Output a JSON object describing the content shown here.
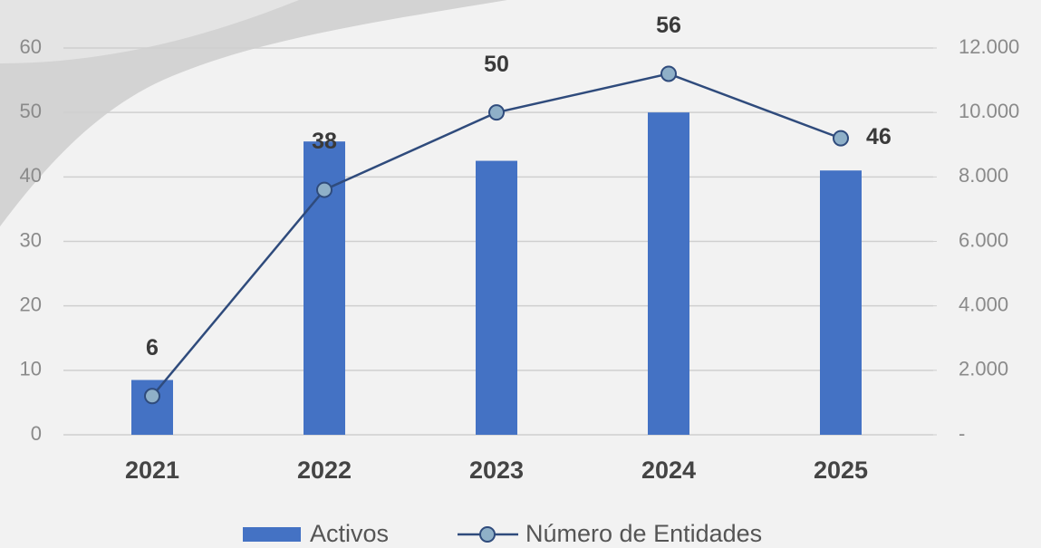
{
  "chart_data": {
    "type": "bar-line",
    "categories": [
      "2021",
      "2022",
      "2023",
      "2024",
      "2025"
    ],
    "series": [
      {
        "name": "Activos",
        "type": "bar",
        "axis": "y2",
        "color": "#4472c4",
        "values": [
          1700,
          9100,
          8500,
          10000,
          8200
        ]
      },
      {
        "name": "Número de Entidades",
        "type": "line",
        "axis": "y",
        "color": "#2f4b7c",
        "marker_color": "#8fb0c8",
        "values": [
          6,
          38,
          50,
          56,
          46
        ]
      }
    ],
    "ylim": [
      0,
      60
    ],
    "yticks": [
      0,
      10,
      20,
      30,
      40,
      50,
      60
    ],
    "y2lim": [
      0,
      12000
    ],
    "y2ticks": [
      {
        "value": 0,
        "label": "-"
      },
      {
        "value": 2000,
        "label": "2.000"
      },
      {
        "value": 4000,
        "label": "4.000"
      },
      {
        "value": 6000,
        "label": "6.000"
      },
      {
        "value": 8000,
        "label": "8.000"
      },
      {
        "value": 10000,
        "label": "10.000"
      },
      {
        "value": 12000,
        "label": "12.000"
      }
    ],
    "grid": true,
    "legend": "bottom"
  }
}
